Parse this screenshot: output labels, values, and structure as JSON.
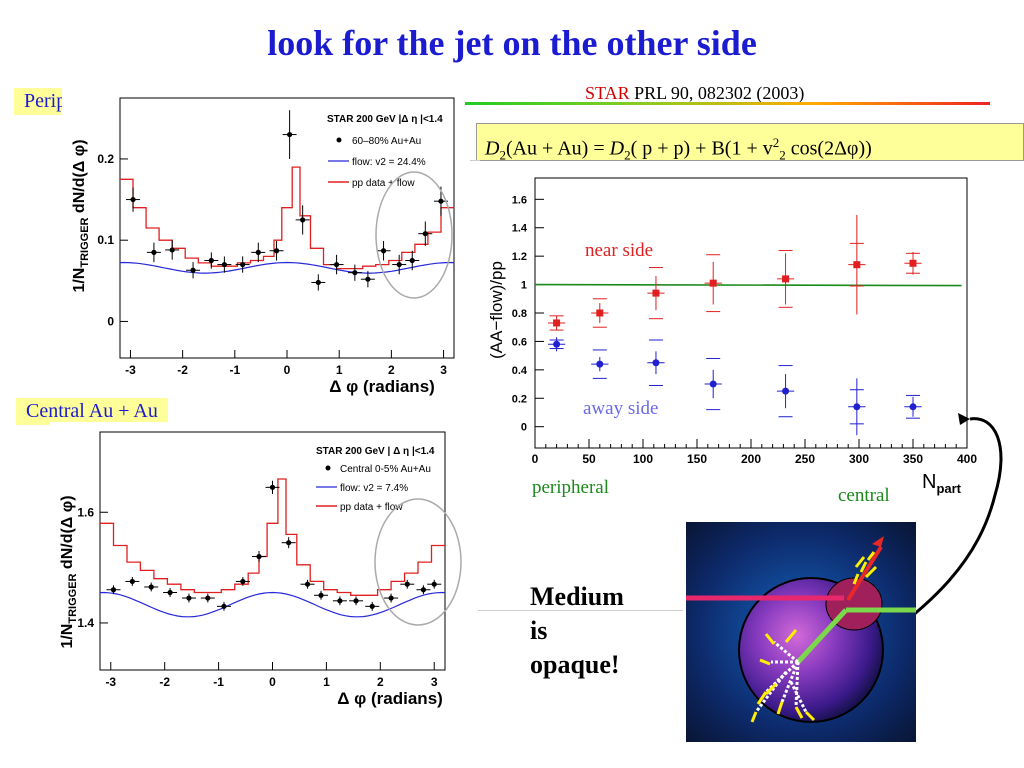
{
  "slide": {
    "title": "look for the jet on the other side",
    "peripheral_tag": "Peripheral Au + Au",
    "central_tag": "Central Au + Au",
    "citation_star": "STAR",
    "citation_rest": " PRL 90, 082302 (2003)",
    "medium_lines": [
      "Medium",
      "is",
      "opaque!"
    ],
    "formula": {
      "d": "D",
      "sub2": "2",
      "aa": "(Au + Au) = ",
      "pp": "( p + p) + B(1 + v",
      "sup2": "2",
      "cos": " cos(2Δφ))"
    },
    "colors": {
      "title": "#1b1bd0",
      "tag_bg": "#ffff99",
      "near": "#e02020",
      "away": "#2020d0",
      "green": "#1a8a1a"
    }
  },
  "chart_data": [
    {
      "type": "scatter",
      "panel": "peripheral",
      "xlabel": "Δ φ (radians)",
      "ylabel": "1/N_TRIGGER dN/d(Δ φ)",
      "ylabel_main": "1/N",
      "ylabel_sub": "TRIGGER",
      "ylabel_rest": " dN/d(Δ φ)",
      "xlim": [
        -3.2,
        3.2
      ],
      "ylim": [
        -0.045,
        0.275
      ],
      "xticks": [
        -3,
        -2,
        -1,
        0,
        1,
        2,
        3
      ],
      "xtick_labels": [
        "-3",
        "-2",
        "-1",
        "0",
        "1",
        "2",
        "3"
      ],
      "yticks": [
        0,
        0.1,
        0.2
      ],
      "ytick_labels": [
        "0",
        "0.1",
        "0.2"
      ],
      "legend": {
        "header": "STAR 200 GeV |Δ η |<1.4",
        "points": "60–80% Au+Au",
        "flow": "flow: v2 = 24.4%",
        "pp": "pp data + flow"
      },
      "points": {
        "x": [
          -2.95,
          -2.55,
          -2.2,
          -1.8,
          -1.45,
          -1.2,
          -0.85,
          -0.55,
          -0.2,
          0.05,
          0.3,
          0.6,
          0.95,
          1.3,
          1.55,
          1.85,
          2.15,
          2.4,
          2.65,
          2.95
        ],
        "y": [
          0.15,
          0.085,
          0.088,
          0.063,
          0.075,
          0.07,
          0.07,
          0.085,
          0.087,
          0.23,
          0.125,
          0.048,
          0.07,
          0.06,
          0.052,
          0.087,
          0.07,
          0.075,
          0.108,
          0.148
        ],
        "err": [
          0.015,
          0.012,
          0.012,
          0.01,
          0.01,
          0.01,
          0.01,
          0.012,
          0.012,
          0.03,
          0.018,
          0.01,
          0.012,
          0.01,
          0.01,
          0.012,
          0.012,
          0.012,
          0.015,
          0.018
        ]
      },
      "pp_flow": {
        "x": [
          -3.2,
          -2.95,
          -2.7,
          -2.45,
          -2.2,
          -1.95,
          -1.7,
          -1.45,
          -1.2,
          -0.95,
          -0.7,
          -0.45,
          -0.25,
          -0.1,
          0.1,
          0.25,
          0.45,
          0.7,
          0.95,
          1.2,
          1.45,
          1.7,
          1.95,
          2.2,
          2.45,
          2.7,
          2.95,
          3.2
        ],
        "y": [
          0.175,
          0.14,
          0.115,
          0.1,
          0.09,
          0.078,
          0.072,
          0.068,
          0.068,
          0.072,
          0.075,
          0.08,
          0.1,
          0.14,
          0.19,
          0.13,
          0.09,
          0.07,
          0.065,
          0.065,
          0.068,
          0.07,
          0.075,
          0.085,
          0.095,
          0.11,
          0.14,
          0.175
        ]
      },
      "flow_amplitude": {
        "base": 0.066,
        "amp": 0.0065
      }
    },
    {
      "type": "scatter",
      "panel": "central",
      "xlabel": "Δ φ (radians)",
      "ylabel": "1/N_TRIGGER dN/d(Δ φ)",
      "ylabel_main": "1/N",
      "ylabel_sub": "TRIGGER",
      "ylabel_rest": " dN/d(Δ φ)",
      "xlim": [
        -3.2,
        3.2
      ],
      "ylim": [
        1.315,
        1.745
      ],
      "xticks": [
        -3,
        -2,
        -1,
        0,
        1,
        2,
        3
      ],
      "xtick_labels": [
        "-3",
        "-2",
        "-1",
        "0",
        "1",
        "2",
        "3"
      ],
      "yticks": [
        1.4,
        1.6
      ],
      "ytick_labels": [
        "1.4",
        "1.6"
      ],
      "legend": {
        "header": "STAR 200 GeV | Δ η |<1.4",
        "points": "Central 0-5% Au+Au",
        "flow": "flow: v2 = 7.4%",
        "pp": "pp data + flow"
      },
      "points": {
        "x": [
          -2.95,
          -2.6,
          -2.25,
          -1.9,
          -1.55,
          -1.2,
          -0.9,
          -0.55,
          -0.25,
          0.0,
          0.3,
          0.65,
          0.9,
          1.25,
          1.55,
          1.85,
          2.2,
          2.5,
          2.8,
          3.0
        ],
        "y": [
          1.46,
          1.475,
          1.465,
          1.455,
          1.445,
          1.445,
          1.43,
          1.475,
          1.52,
          1.645,
          1.545,
          1.47,
          1.45,
          1.44,
          1.44,
          1.43,
          1.445,
          1.47,
          1.46,
          1.47
        ],
        "err": [
          0.008,
          0.008,
          0.008,
          0.008,
          0.008,
          0.008,
          0.008,
          0.008,
          0.01,
          0.012,
          0.01,
          0.008,
          0.008,
          0.008,
          0.008,
          0.008,
          0.008,
          0.008,
          0.008,
          0.008
        ]
      },
      "pp_flow": {
        "x": [
          -3.2,
          -2.95,
          -2.7,
          -2.45,
          -2.2,
          -1.95,
          -1.7,
          -1.45,
          -1.2,
          -0.95,
          -0.7,
          -0.45,
          -0.25,
          -0.1,
          0.1,
          0.25,
          0.45,
          0.7,
          0.95,
          1.2,
          1.45,
          1.7,
          1.95,
          2.2,
          2.45,
          2.7,
          2.95,
          3.2
        ],
        "y": [
          1.58,
          1.54,
          1.51,
          1.495,
          1.48,
          1.47,
          1.46,
          1.455,
          1.455,
          1.46,
          1.47,
          1.49,
          1.52,
          1.58,
          1.66,
          1.56,
          1.505,
          1.475,
          1.46,
          1.455,
          1.45,
          1.45,
          1.46,
          1.475,
          1.49,
          1.51,
          1.54,
          1.58
        ]
      },
      "flow_amplitude": {
        "base": 1.433,
        "amp": 0.022
      }
    },
    {
      "type": "scatter",
      "panel": "ratio",
      "ylabel": "(AA−flow)/pp",
      "xlabel_main": "N",
      "xlabel_sub": "part",
      "xlim": [
        0,
        400
      ],
      "ylim": [
        -0.15,
        1.75
      ],
      "xticks": [
        0,
        50,
        100,
        150,
        200,
        250,
        300,
        350,
        400
      ],
      "xtick_labels": [
        "0",
        "50",
        "100",
        "150",
        "200",
        "250",
        "300",
        "350",
        "400"
      ],
      "yticks": [
        0,
        0.2,
        0.4,
        0.6,
        0.8,
        1,
        1.2,
        1.4,
        1.6
      ],
      "ytick_labels": [
        "0",
        "0.2",
        "0.4",
        "0.6",
        "0.8",
        "1",
        "1.2",
        "1.4",
        "1.6"
      ],
      "reference_line": 1,
      "labels": {
        "near": "near side",
        "away": "away side",
        "peripheral": "peripheral",
        "central": "central"
      },
      "series": [
        {
          "name": "near side",
          "x": [
            20,
            60,
            112,
            165,
            232,
            298,
            350
          ],
          "y": [
            0.73,
            0.8,
            0.94,
            1.01,
            1.04,
            1.14,
            1.15
          ],
          "err": [
            0.05,
            0.07,
            0.12,
            0.15,
            0.18,
            0.35,
            0.08
          ],
          "sys": [
            0.05,
            0.1,
            0.18,
            0.2,
            0.2,
            0.15,
            0.07
          ],
          "xerr": 8
        },
        {
          "name": "away side",
          "x": [
            20,
            60,
            112,
            165,
            232,
            298,
            350
          ],
          "y": [
            0.58,
            0.44,
            0.45,
            0.3,
            0.25,
            0.14,
            0.14
          ],
          "err": [
            0.05,
            0.05,
            0.08,
            0.1,
            0.12,
            0.2,
            0.07
          ],
          "sys": [
            0.03,
            0.1,
            0.16,
            0.18,
            0.18,
            0.12,
            0.08
          ],
          "xerr": 8
        }
      ]
    }
  ]
}
